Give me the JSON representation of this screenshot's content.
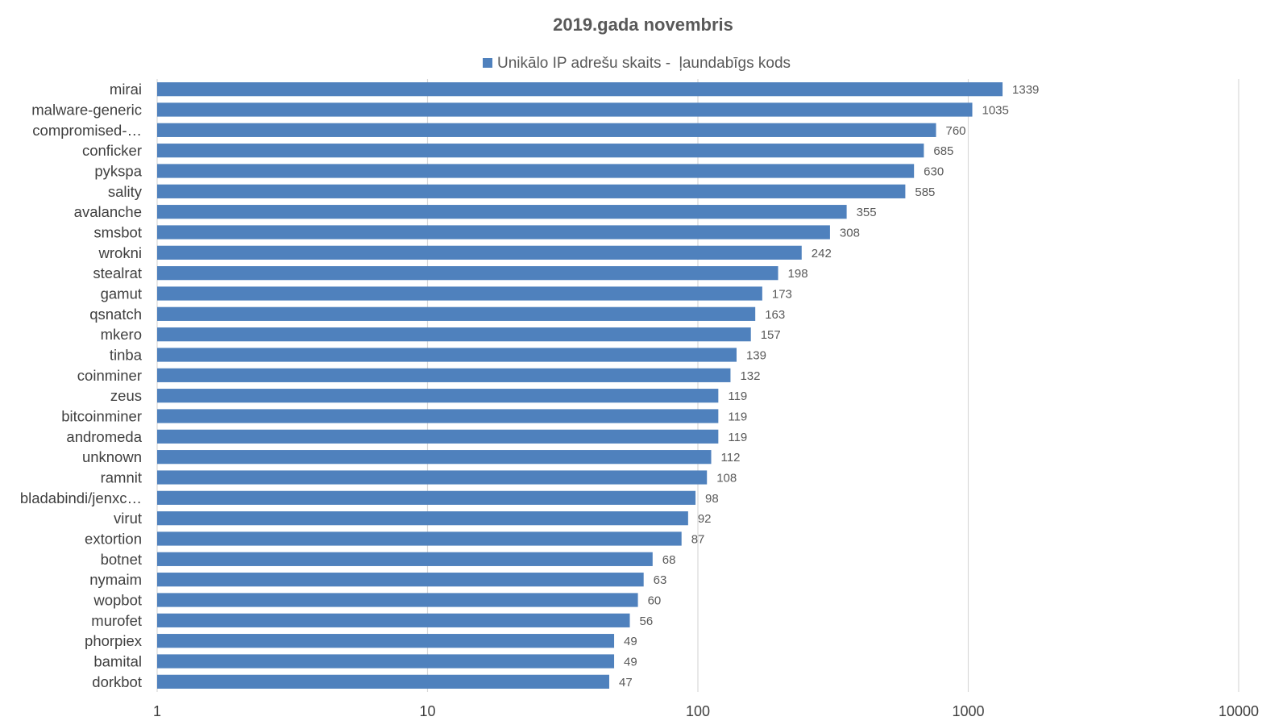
{
  "chart_data": {
    "type": "bar",
    "orientation": "horizontal",
    "title": "2019.gada novembris",
    "xscale": "log",
    "xlim": [
      1,
      10000
    ],
    "xticks": [
      "1",
      "10",
      "100",
      "1000",
      "10000"
    ],
    "grid": true,
    "legend_position": "top",
    "bar_color": "#4f81bd",
    "series": [
      {
        "name": "Unikālo IP adrešu skaits -  ļaundabīgs kods",
        "values": [
          1339,
          1035,
          760,
          685,
          630,
          585,
          355,
          308,
          242,
          198,
          173,
          163,
          157,
          139,
          132,
          119,
          119,
          119,
          112,
          108,
          98,
          92,
          87,
          68,
          63,
          60,
          56,
          49,
          49,
          47
        ]
      }
    ],
    "categories": [
      "mirai",
      "malware-generic",
      "compromised-…",
      "conficker",
      "pykspa",
      "sality",
      "avalanche",
      "smsbot",
      "wrokni",
      "stealrat",
      "gamut",
      "qsnatch",
      "mkero",
      "tinba",
      "coinminer",
      "zeus",
      "bitcoinminer",
      "andromeda",
      "unknown",
      "ramnit",
      "bladabindi/jenxc…",
      "virut",
      "extortion",
      "botnet",
      "nymaim",
      "wopbot",
      "murofet",
      "phorpiex",
      "bamital",
      "dorkbot"
    ]
  }
}
